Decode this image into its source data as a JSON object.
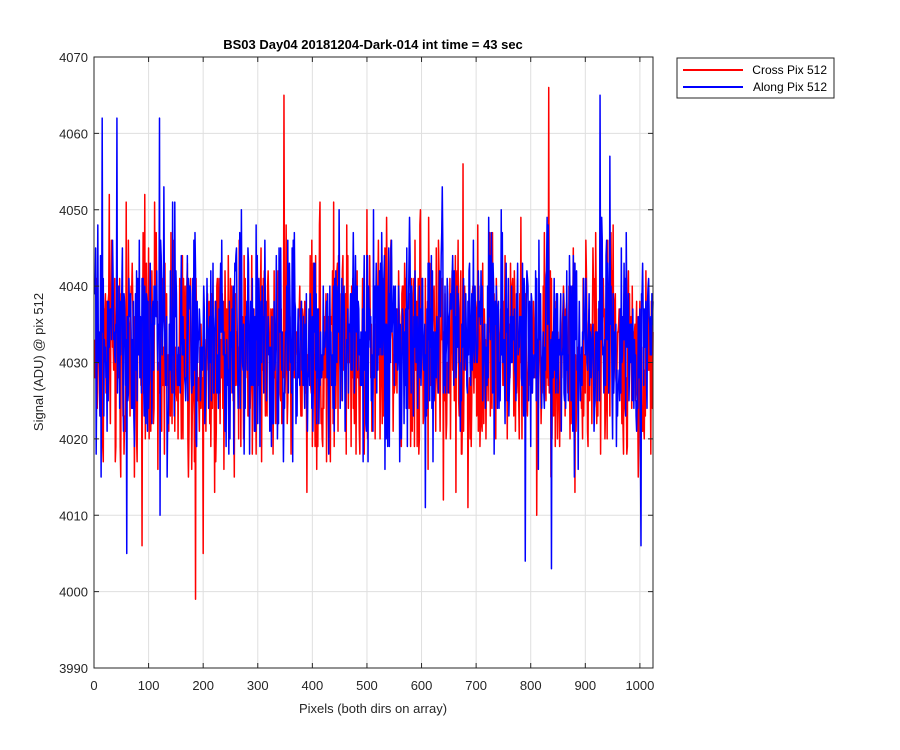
{
  "chart_data": {
    "type": "line",
    "title": "BS03 Day04 20181204-Dark-014 int time = 43 sec",
    "xlabel": "Pixels (both dirs on array)",
    "ylabel": "Signal (ADU) @ pix 512",
    "xlim": [
      0,
      1024
    ],
    "ylim": [
      3990,
      4070
    ],
    "x_ticks": [
      0,
      100,
      200,
      300,
      400,
      500,
      600,
      700,
      800,
      900,
      1000
    ],
    "y_ticks": [
      3990,
      4000,
      4010,
      4020,
      4030,
      4040,
      4050,
      4060,
      4070
    ],
    "grid": true,
    "legend_position": "outside-top-right",
    "x_points": {
      "start": 1,
      "step": 1,
      "count": 1024
    },
    "series": [
      {
        "name": "Cross Pix 512",
        "color": "#ff0000",
        "mean": 4032,
        "std": 8,
        "noted_extremes": [
          {
            "x": 186,
            "y": 3999
          },
          {
            "x": 200,
            "y": 4005
          },
          {
            "x": 348,
            "y": 4065
          },
          {
            "x": 833,
            "y": 4066
          },
          {
            "x": 88,
            "y": 4006
          }
        ]
      },
      {
        "name": "Along Pix 512",
        "color": "#0000ff",
        "mean": 4033,
        "std": 7,
        "noted_extremes": [
          {
            "x": 60,
            "y": 4005
          },
          {
            "x": 15,
            "y": 4062
          },
          {
            "x": 42,
            "y": 4062
          },
          {
            "x": 120,
            "y": 4062
          },
          {
            "x": 790,
            "y": 4004
          },
          {
            "x": 838,
            "y": 4003
          },
          {
            "x": 927,
            "y": 4065
          },
          {
            "x": 1002,
            "y": 4006
          }
        ]
      }
    ]
  }
}
